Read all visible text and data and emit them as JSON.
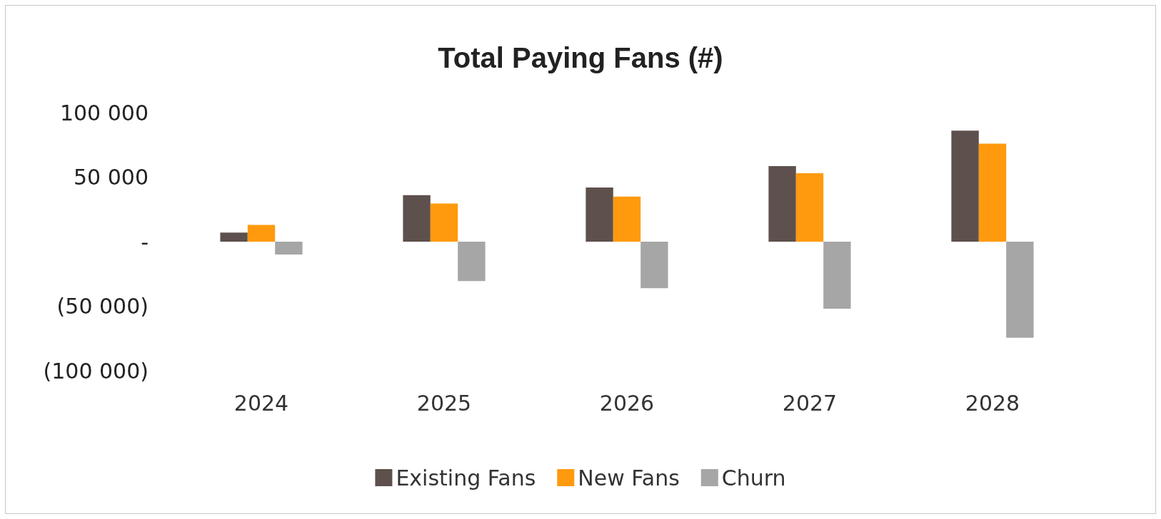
{
  "chart_data": {
    "type": "bar",
    "title": "Total Paying Fans (#)",
    "categories": [
      "2024",
      "2025",
      "2026",
      "2027",
      "2028"
    ],
    "series": [
      {
        "name": "Existing Fans",
        "color": "#5e504d",
        "values": [
          7000,
          36000,
          42000,
          58500,
          86000
        ]
      },
      {
        "name": "New Fans",
        "color": "#ff9a0e",
        "values": [
          13000,
          29500,
          35000,
          53000,
          76000
        ]
      },
      {
        "name": "Churn",
        "color": "#a6a6a6",
        "values": [
          -10000,
          -30500,
          -36000,
          -52000,
          -74500
        ]
      }
    ],
    "ylim": [
      -100000,
      100000
    ],
    "yticks": [
      {
        "value": -100000,
        "label": "(100 000)"
      },
      {
        "value": -50000,
        "label": "(50 000)"
      },
      {
        "value": 0,
        "label": "-"
      },
      {
        "value": 50000,
        "label": "50 000"
      },
      {
        "value": 100000,
        "label": "100 000"
      }
    ],
    "grid": false,
    "legend": "bottom"
  }
}
